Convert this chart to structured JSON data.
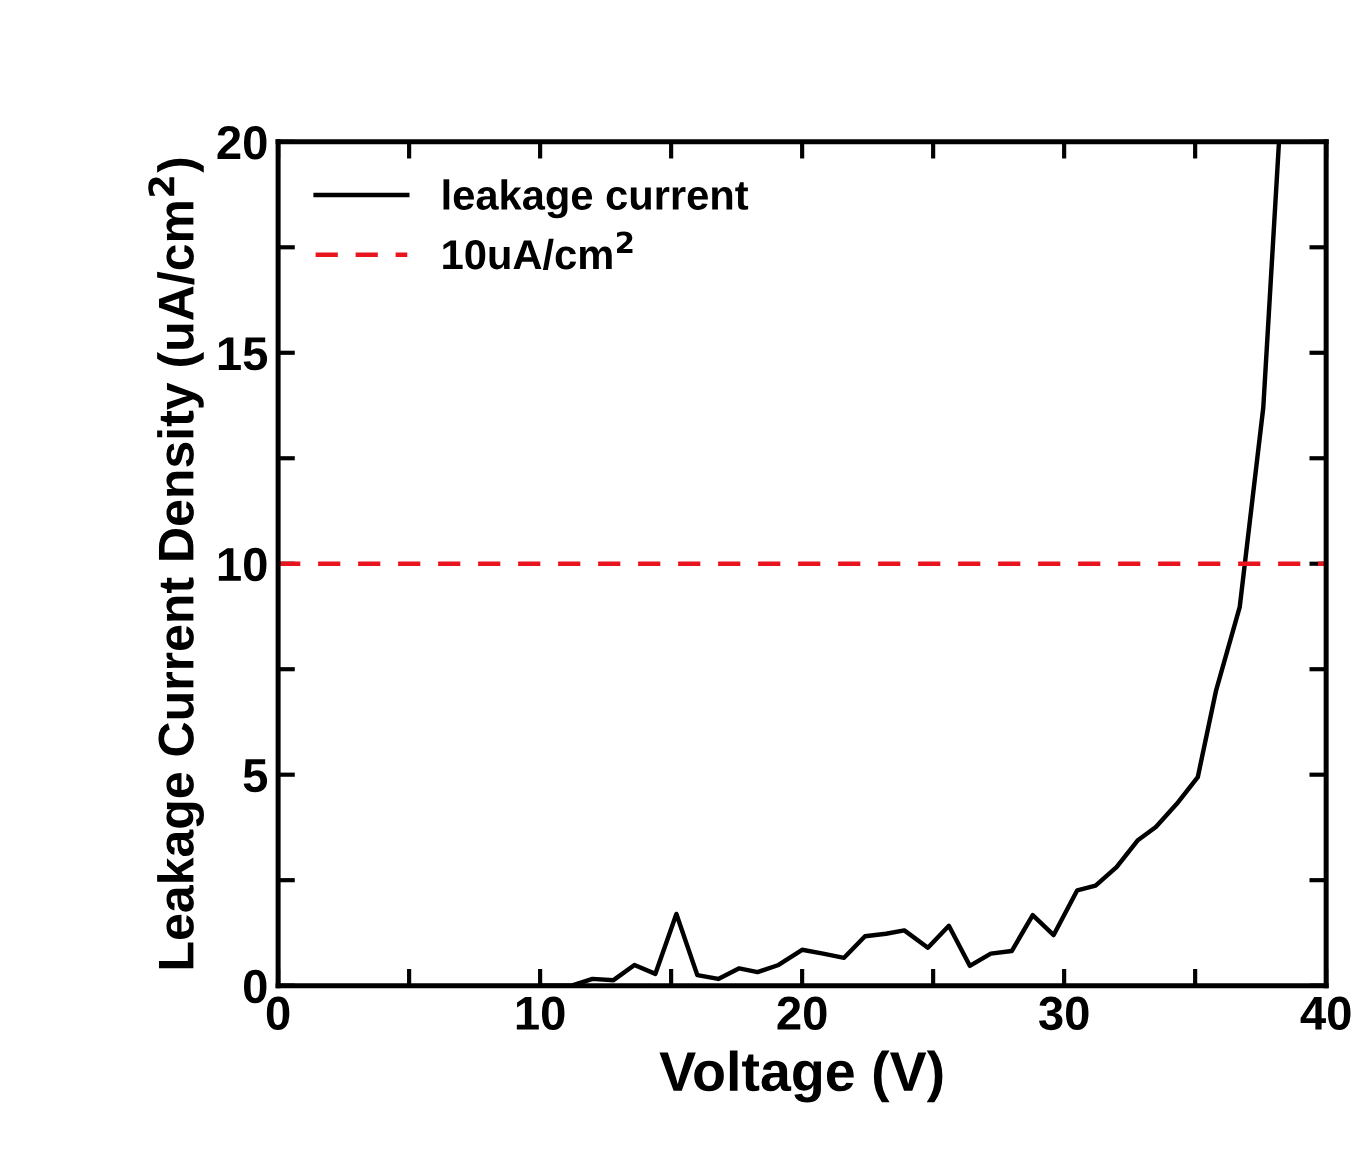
{
  "chart_data": {
    "type": "line",
    "xlabel": "Voltage (V)",
    "ylabel": "Leakage Current Density (uA/cm$^{2}$)",
    "x": [
      10,
      11.2,
      12.0,
      12.8,
      13.6,
      14.4,
      15.2,
      16.0,
      16.8,
      17.6,
      18.3,
      19.1,
      20.0,
      20.8,
      21.6,
      22.4,
      23.2,
      23.9,
      24.8,
      25.6,
      26.4,
      27.2,
      28.0,
      28.8,
      29.6,
      30.5,
      31.2,
      32.0,
      32.8,
      33.5,
      34.3,
      35.1,
      35.8,
      36.7,
      37.6,
      38.2
    ],
    "series": [
      {
        "name": "leakage current",
        "color": "#000000",
        "values": [
          0,
          0,
          0.16,
          0.13,
          0.49,
          0.28,
          1.7,
          0.25,
          0.16,
          0.41,
          0.32,
          0.49,
          0.85,
          0.76,
          0.66,
          1.17,
          1.23,
          1.31,
          0.9,
          1.42,
          0.47,
          0.76,
          0.82,
          1.67,
          1.2,
          2.26,
          2.37,
          2.81,
          3.44,
          3.76,
          4.31,
          4.94,
          7.0,
          8.97,
          13.7,
          20.0
        ]
      }
    ],
    "ref_lines": [
      {
        "axis": "y",
        "value": 10,
        "label": "10uA/cm$^{2}$",
        "color": "#e8141e",
        "line_style": "dashed"
      }
    ],
    "xlim": [
      0,
      40
    ],
    "ylim": [
      0,
      20
    ],
    "xticks": [
      0,
      {
        "value": 5,
        "label": null
      },
      10,
      {
        "value": 15,
        "label": null
      },
      20,
      {
        "value": 25,
        "label": null
      },
      30,
      {
        "value": 35,
        "label": null
      },
      40
    ],
    "yticks": [
      0,
      {
        "value": 2.5,
        "label": null
      },
      5,
      {
        "value": 7.5,
        "label": null
      },
      10,
      {
        "value": 12.5,
        "label": null
      },
      15,
      {
        "value": 17.5,
        "label": null
      },
      20
    ],
    "grid": false,
    "legend": "top left",
    "marker": "none",
    "line_style": "solid"
  }
}
